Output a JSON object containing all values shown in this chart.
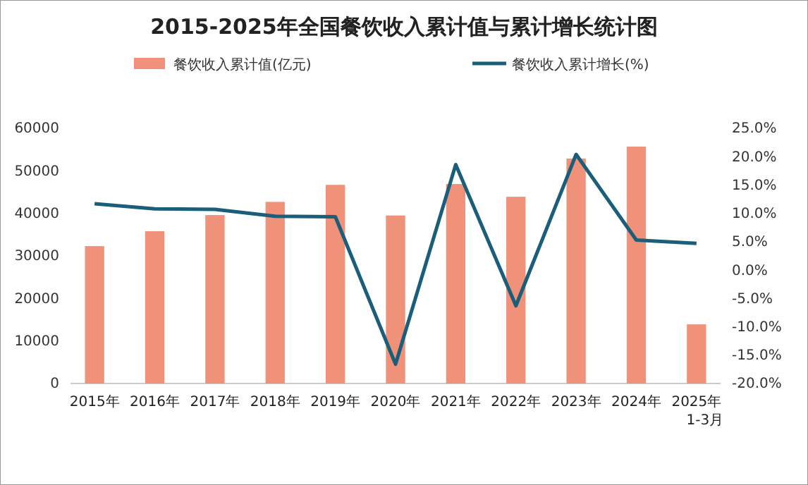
{
  "chart_data": {
    "type": "bar",
    "title": "2015-2025年全国餐饮收入累计值与累计增长统计图",
    "categories": [
      "2015年",
      "2016年",
      "2017年",
      "2018年",
      "2019年",
      "2020年",
      "2021年",
      "2022年",
      "2023年",
      "2024年",
      "2025年\n1-3月"
    ],
    "series": [
      {
        "name": "餐饮收入累计值(亿元)",
        "color": "#f0917a",
        "values": [
          32300,
          35800,
          39600,
          42700,
          46700,
          39500,
          46900,
          43900,
          52900,
          55700,
          13900
        ]
      },
      {
        "name": "餐饮收入累计增长(%)",
        "type": "line",
        "axis": "y2",
        "color": "#1a5e7a",
        "values": [
          11.7,
          10.8,
          10.7,
          9.5,
          9.4,
          -16.6,
          18.6,
          -6.3,
          20.4,
          5.3,
          4.7
        ]
      }
    ],
    "ylim": [
      0,
      60000
    ],
    "yticks": [
      0,
      10000,
      20000,
      30000,
      40000,
      50000,
      60000
    ],
    "y2lim": [
      -20,
      25
    ],
    "y2ticks": [
      {
        "value": -20,
        "label": "-20.0%"
      },
      {
        "value": -15,
        "label": "-15.0%"
      },
      {
        "value": -10,
        "label": "-10.0%"
      },
      {
        "value": -5,
        "label": "-5.0%"
      },
      {
        "value": 0,
        "label": "0.0%"
      },
      {
        "value": 5,
        "label": "5.0%"
      },
      {
        "value": 10,
        "label": "10.0%"
      },
      {
        "value": 15,
        "label": "15.0%"
      },
      {
        "value": 20,
        "label": "20.0%"
      },
      {
        "value": 25,
        "label": "25.0%"
      }
    ],
    "legend": "top",
    "grid": false,
    "marker": "none"
  }
}
